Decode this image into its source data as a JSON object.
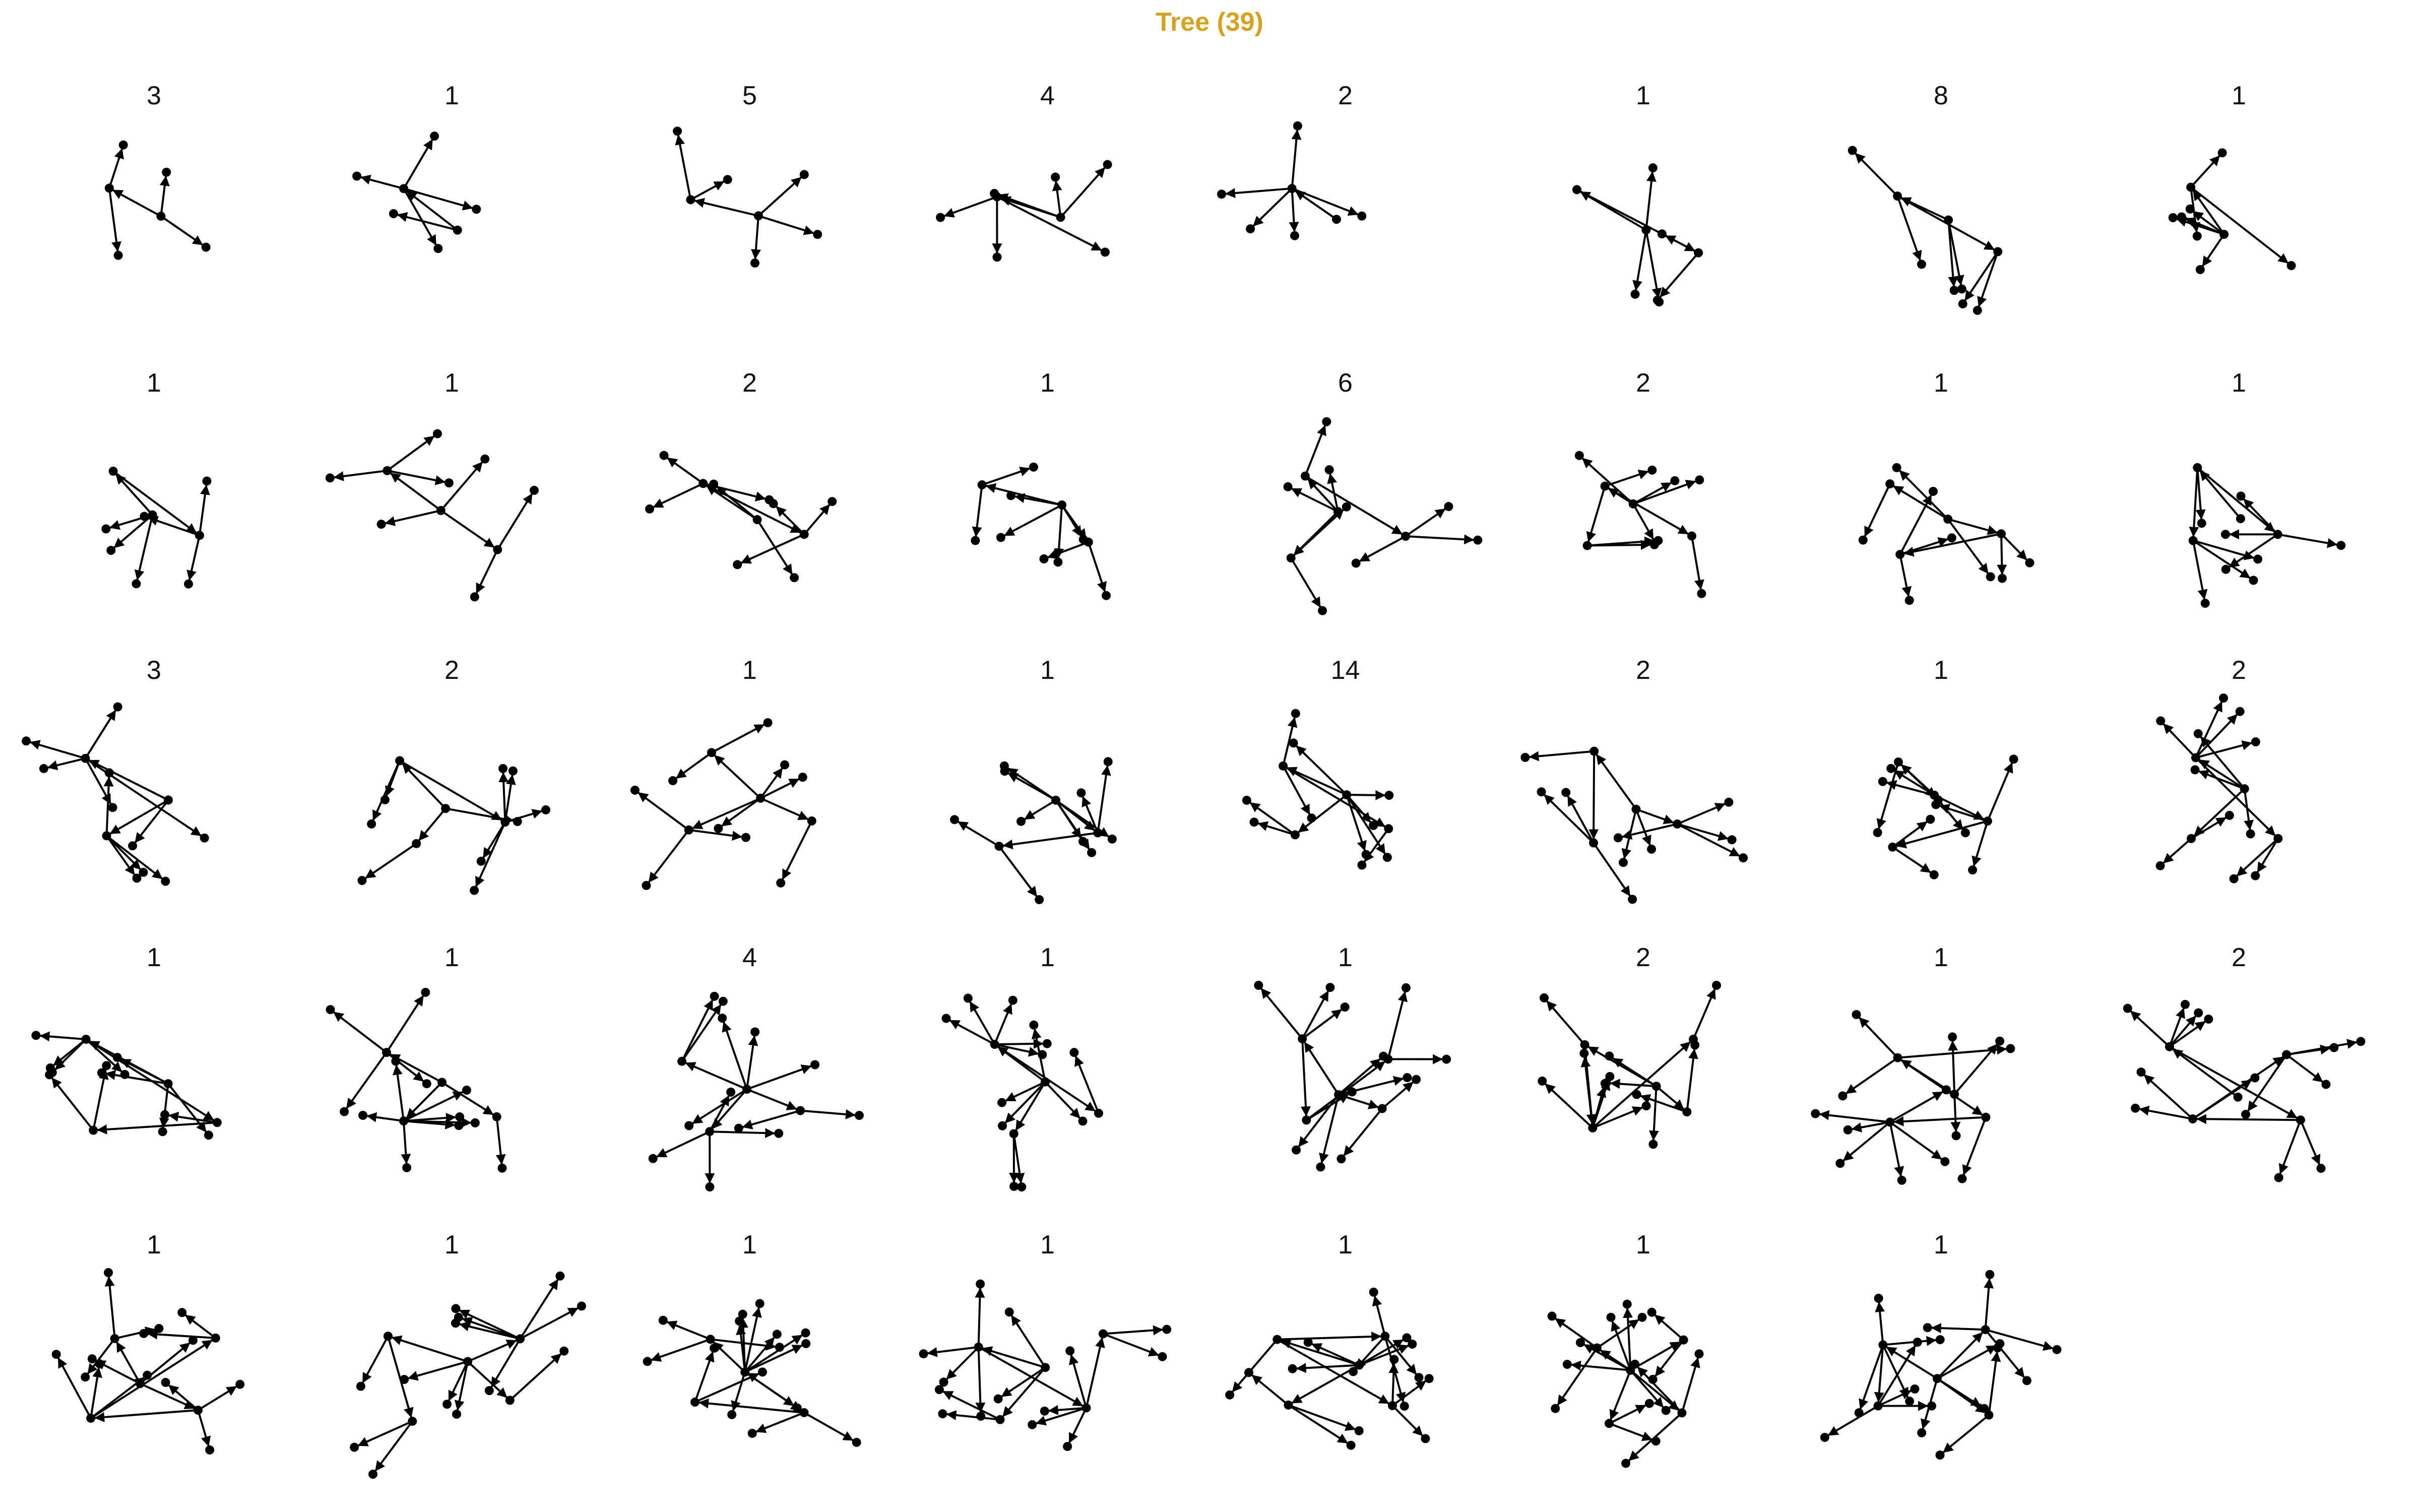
{
  "title": "Tree (39)",
  "colors": {
    "title": "#d9a21b",
    "edge": "#000000",
    "node": "#000000"
  },
  "panels": [
    {
      "count": "3",
      "nodes": 6
    },
    {
      "count": "1",
      "nodes": 7
    },
    {
      "count": "5",
      "nodes": 7
    },
    {
      "count": "4",
      "nodes": 8
    },
    {
      "count": "2",
      "nodes": 7
    },
    {
      "count": "1",
      "nodes": 8
    },
    {
      "count": "8",
      "nodes": 9
    },
    {
      "count": "1",
      "nodes": 9
    },
    {
      "count": "1",
      "nodes": 9
    },
    {
      "count": "1",
      "nodes": 10
    },
    {
      "count": "2",
      "nodes": 11
    },
    {
      "count": "1",
      "nodes": 11
    },
    {
      "count": "6",
      "nodes": 12
    },
    {
      "count": "2",
      "nodes": 12
    },
    {
      "count": "1",
      "nodes": 12
    },
    {
      "count": "1",
      "nodes": 12
    },
    {
      "count": "3",
      "nodes": 13
    },
    {
      "count": "2",
      "nodes": 13
    },
    {
      "count": "1",
      "nodes": 13
    },
    {
      "count": "1",
      "nodes": 13
    },
    {
      "count": "14",
      "nodes": 14
    },
    {
      "count": "2",
      "nodes": 14
    },
    {
      "count": "1",
      "nodes": 14
    },
    {
      "count": "2",
      "nodes": 15
    },
    {
      "count": "1",
      "nodes": 15
    },
    {
      "count": "1",
      "nodes": 16
    },
    {
      "count": "4",
      "nodes": 16
    },
    {
      "count": "1",
      "nodes": 16
    },
    {
      "count": "1",
      "nodes": 17
    },
    {
      "count": "2",
      "nodes": 17
    },
    {
      "count": "1",
      "nodes": 17
    },
    {
      "count": "2",
      "nodes": 18
    },
    {
      "count": "1",
      "nodes": 18
    },
    {
      "count": "1",
      "nodes": 18
    },
    {
      "count": "1",
      "nodes": 19
    },
    {
      "count": "1",
      "nodes": 19
    },
    {
      "count": "1",
      "nodes": 20
    },
    {
      "count": "1",
      "nodes": 20
    },
    {
      "count": "1",
      "nodes": 22
    }
  ]
}
